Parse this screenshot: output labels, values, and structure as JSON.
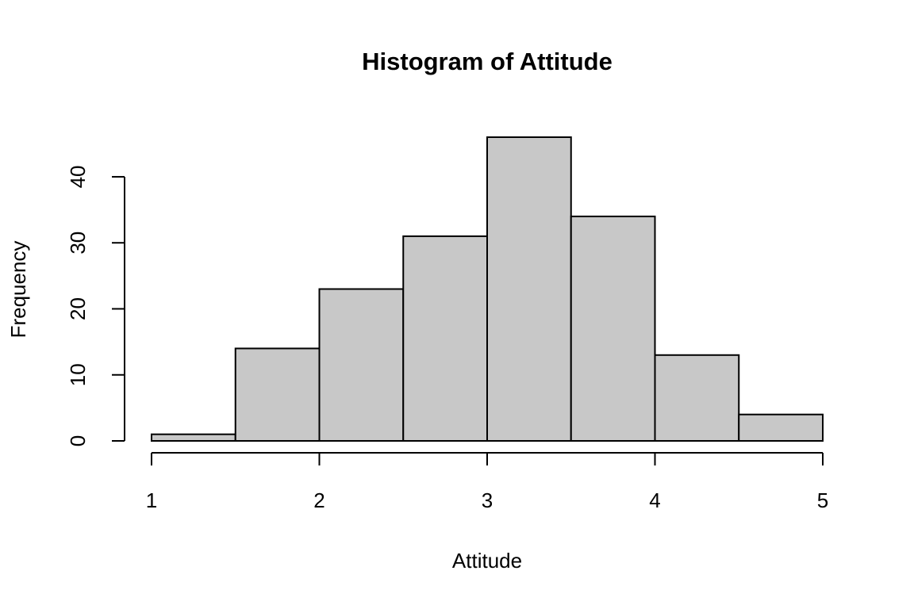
{
  "chart_data": {
    "type": "histogram",
    "title": "Histogram of Attitude",
    "x_label": "Attitude",
    "y_label": "Frequency",
    "bins": [
      1,
      1.5,
      2,
      2.5,
      3,
      3.5,
      4,
      4.5,
      5
    ],
    "values": [
      1,
      14,
      23,
      31,
      46,
      34,
      13,
      4
    ],
    "color": "#c8c8c8",
    "xlim": [
      1,
      5
    ],
    "xticks": [
      1,
      2,
      3,
      4,
      5
    ],
    "ylim": [
      0,
      46
    ],
    "yticks": [
      0,
      10,
      20,
      30,
      40
    ],
    "grid": false
  }
}
